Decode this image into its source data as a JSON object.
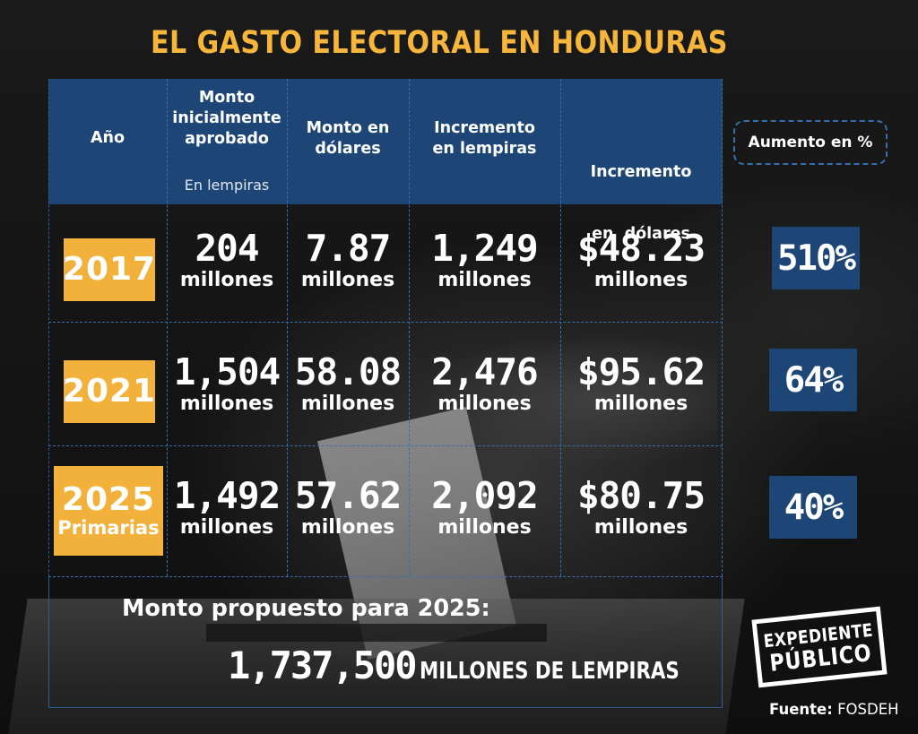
{
  "title": "EL GASTO ELECTORAL EN HONDURAS",
  "table": {
    "headers": {
      "year": "Año",
      "approved_line1": "Monto",
      "approved_line2": "inicialmente",
      "approved_line3": "aprobado",
      "approved_sub": "En lempiras",
      "dollars_line1": "Monto en",
      "dollars_line2": "dólares",
      "inc_lempiras_line1": "Incremento",
      "inc_lempiras_line2": "en lempiras",
      "inc_dollars_line1": "Incremento",
      "inc_dollars_line2": "en  dólares",
      "percent": "Aumento en %"
    },
    "rows": [
      {
        "year": "2017",
        "year_sub": "",
        "approved": "204",
        "dollars": "7.87",
        "inc_lempiras": "1,249",
        "inc_dollars": "$48.23",
        "unit": "millones",
        "percent": "510%"
      },
      {
        "year": "2021",
        "year_sub": "",
        "approved": "1,504",
        "dollars": "58.08",
        "inc_lempiras": "2,476",
        "inc_dollars": "$95.62",
        "unit": "millones",
        "percent": "64%"
      },
      {
        "year": "2025",
        "year_sub": "Primarias",
        "approved": "1,492",
        "dollars": "57.62",
        "inc_lempiras": "2,092",
        "inc_dollars": "$80.75",
        "unit": "millones",
        "percent": "40%"
      }
    ]
  },
  "proposed": {
    "label": "Monto propuesto para 2025:",
    "value": "1,737,500",
    "value_suffix": "MILLONES DE LEMPIRAS"
  },
  "logo": {
    "line1": "EXPEDIENTE",
    "line2": "PÚBLICO"
  },
  "source": {
    "label": "Fuente:",
    "value": "FOSDEH"
  },
  "colors": {
    "title": "#f5b63b",
    "header": "#1d4677",
    "year_box": "#f2b13b",
    "background": "#161616"
  }
}
